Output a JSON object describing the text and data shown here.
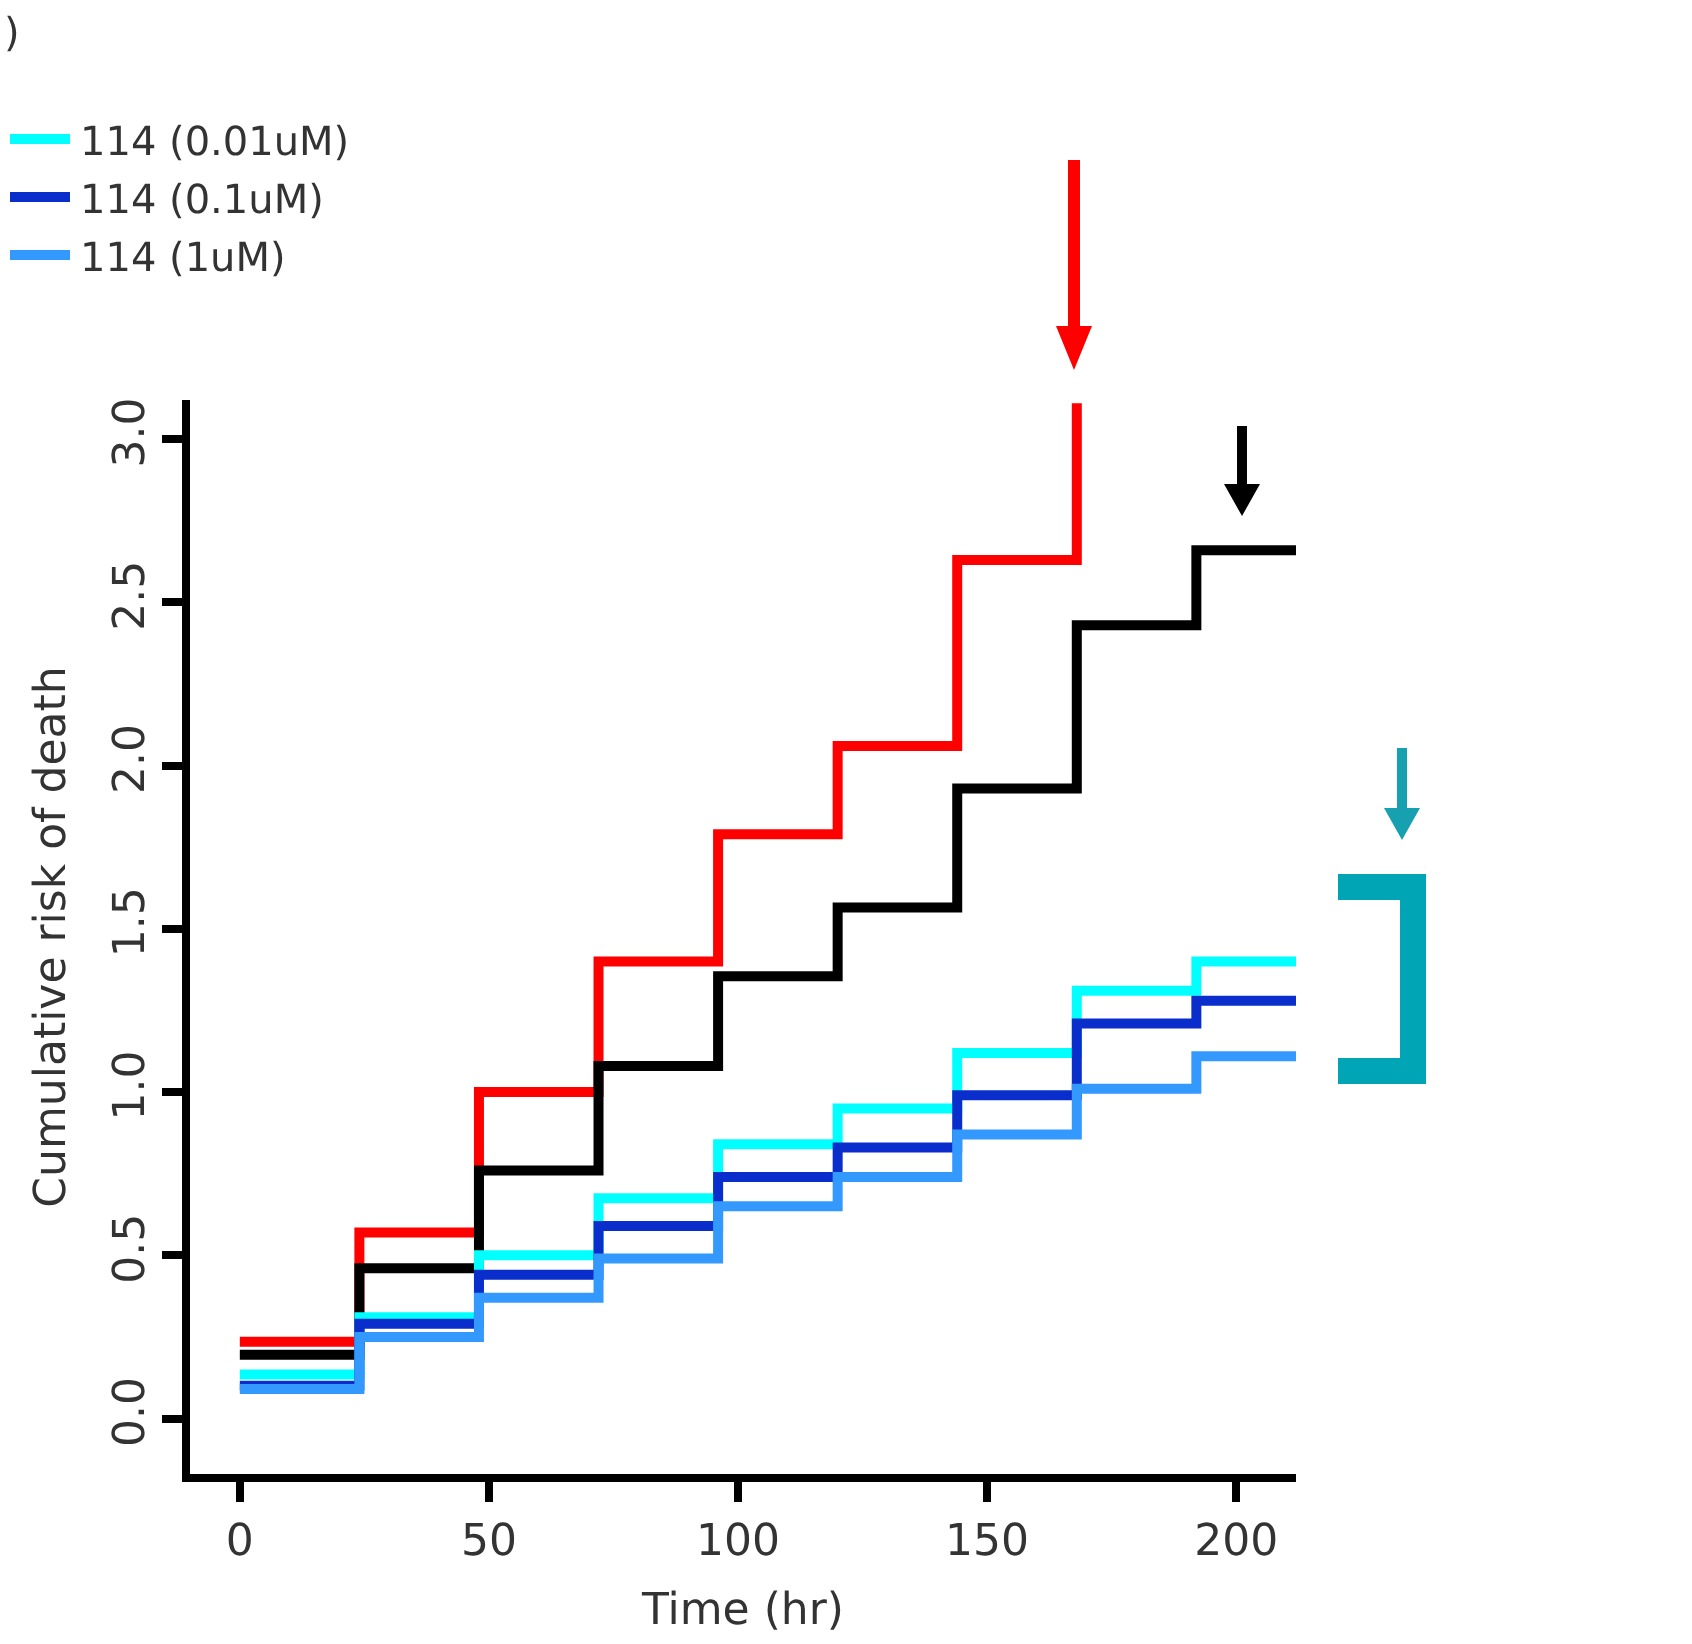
{
  "chart_data": {
    "type": "step",
    "xlabel": "Time (hr)",
    "ylabel": "Cumulative risk of death",
    "annotations": [
      ")"
    ],
    "xlim": [
      -10,
      212
    ],
    "xticks": [
      0,
      50,
      100,
      150,
      200
    ],
    "ylim": [
      -0.17,
      3.12
    ],
    "yticks": [
      {
        "value": 0,
        "label": "0.0"
      },
      {
        "value": 0.5,
        "label": "0.5"
      },
      {
        "value": 1,
        "label": "1.0"
      },
      {
        "value": 1.5,
        "label": "1.5"
      },
      {
        "value": 2,
        "label": "2.0"
      },
      {
        "value": 2.5,
        "label": "2.5"
      },
      {
        "value": 3,
        "label": "3.0"
      }
    ],
    "legend": "top left",
    "marker": "none",
    "line_style": "solid",
    "series": [
      {
        "color": "#ff0000",
        "x": [
          0,
          24,
          48,
          72,
          96,
          120,
          144,
          168
        ],
        "values": [
          0.235,
          0.57,
          1.0,
          1.4,
          1.79,
          2.06,
          2.63,
          3.11
        ]
      },
      {
        "color": "#000000",
        "x": [
          0,
          24,
          48,
          72,
          96,
          120,
          144,
          168,
          192,
          212
        ],
        "values": [
          0.195,
          0.46,
          0.76,
          1.08,
          1.355,
          1.565,
          1.93,
          2.43,
          2.66,
          2.66
        ]
      },
      {
        "name": "114 (0.01uM)",
        "color": "#00ffff",
        "x": [
          0,
          24,
          48,
          72,
          96,
          120,
          144,
          168,
          192,
          212
        ],
        "values": [
          0.135,
          0.31,
          0.5,
          0.675,
          0.84,
          0.95,
          1.12,
          1.31,
          1.4,
          1.4
        ]
      },
      {
        "name": "114 (0.1uM)",
        "color": "#0a2ecc",
        "x": [
          0,
          24,
          48,
          72,
          96,
          120,
          144,
          168,
          192,
          212
        ],
        "values": [
          0.1,
          0.29,
          0.44,
          0.59,
          0.74,
          0.83,
          0.99,
          1.21,
          1.28,
          1.28
        ]
      },
      {
        "name": "114 (1uM)",
        "color": "#3399ff",
        "x": [
          0,
          24,
          48,
          72,
          96,
          120,
          144,
          168,
          192,
          212
        ],
        "values": [
          0.09,
          0.25,
          0.37,
          0.49,
          0.65,
          0.74,
          0.87,
          1.01,
          1.11,
          1.11
        ]
      }
    ]
  }
}
